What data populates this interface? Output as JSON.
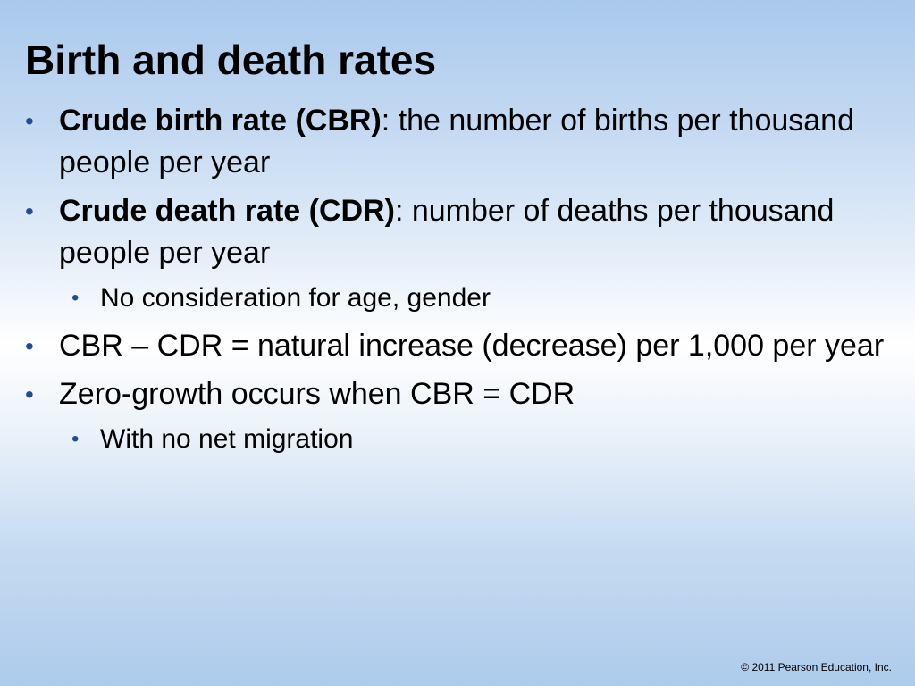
{
  "slide": {
    "title": "Birth and death rates",
    "bullet_glyph": "•",
    "items": [
      {
        "term": "Crude birth rate (CBR)",
        "text": ": the number of births per thousand people per year"
      },
      {
        "term": "Crude death rate (CDR)",
        "text": ": number of deaths per thousand people per year"
      },
      {
        "text": "No consideration for age, gender"
      },
      {
        "text": "CBR – CDR = natural increase (decrease) per 1,000 per year"
      },
      {
        "text": "Zero-growth occurs when CBR = CDR"
      },
      {
        "text": "With no net migration"
      }
    ],
    "copyright": "© 2011 Pearson Education, Inc.",
    "colors": {
      "bullet": "#1f4e99",
      "background_top": "#a9c9ec",
      "background_mid": "#ffffff"
    }
  }
}
